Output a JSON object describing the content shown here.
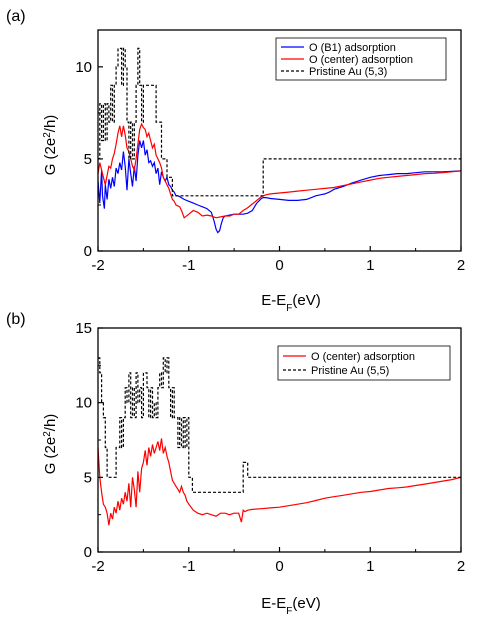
{
  "chart_data": [
    {
      "panel": "(a)",
      "type": "line",
      "xlabel": "E-E",
      "xlabel_sub": "F",
      "xlabel_unit": "(eV)",
      "ylabel": "G (2e",
      "ylabel_sup": "2",
      "ylabel_unit": "/h)",
      "xlim": [
        -2,
        2
      ],
      "ylim": [
        0,
        12
      ],
      "xticks": [
        -2,
        -1,
        0,
        1,
        2
      ],
      "yticks": [
        0,
        5,
        10
      ],
      "xtick_labels": [
        "-2",
        "-1",
        "0",
        "1",
        "2"
      ],
      "ytick_labels": [
        "0",
        "5",
        "10"
      ],
      "legend_position": "top-right",
      "series": [
        {
          "name": "O (B1) adsorption",
          "color": "#0000ff",
          "style": "solid",
          "x": [
            -2.0,
            -1.98,
            -1.96,
            -1.95,
            -1.93,
            -1.92,
            -1.9,
            -1.88,
            -1.86,
            -1.84,
            -1.82,
            -1.8,
            -1.78,
            -1.76,
            -1.74,
            -1.72,
            -1.7,
            -1.68,
            -1.66,
            -1.64,
            -1.62,
            -1.6,
            -1.58,
            -1.56,
            -1.54,
            -1.52,
            -1.5,
            -1.48,
            -1.46,
            -1.44,
            -1.42,
            -1.4,
            -1.38,
            -1.36,
            -1.34,
            -1.32,
            -1.3,
            -1.28,
            -1.26,
            -1.24,
            -1.22,
            -1.2,
            -1.18,
            -1.16,
            -1.14,
            -1.12,
            -1.1,
            -1.05,
            -1.0,
            -0.95,
            -0.9,
            -0.85,
            -0.8,
            -0.75,
            -0.72,
            -0.7,
            -0.68,
            -0.66,
            -0.64,
            -0.62,
            -0.6,
            -0.55,
            -0.5,
            -0.45,
            -0.4,
            -0.35,
            -0.3,
            -0.25,
            -0.22,
            -0.2,
            -0.18,
            -0.15,
            -0.1,
            0.0,
            0.1,
            0.2,
            0.3,
            0.4,
            0.45,
            0.5,
            0.55,
            0.6,
            0.7,
            0.8,
            0.9,
            1.0,
            1.1,
            1.2,
            1.3,
            1.4,
            1.5,
            1.6,
            1.65,
            1.7,
            1.8,
            1.9,
            2.0
          ],
          "y": [
            3.8,
            2.6,
            4.4,
            3.0,
            2.3,
            3.6,
            2.8,
            3.9,
            3.4,
            4.0,
            3.5,
            4.5,
            4.2,
            4.8,
            4.4,
            5.4,
            4.6,
            3.3,
            5.0,
            4.2,
            3.5,
            4.6,
            3.8,
            5.2,
            6.0,
            5.6,
            6.0,
            5.2,
            5.5,
            4.8,
            4.9,
            4.6,
            4.8,
            4.2,
            4.5,
            3.6,
            4.3,
            4.0,
            3.8,
            4.0,
            3.6,
            3.5,
            3.3,
            3.2,
            3.0,
            3.0,
            2.95,
            2.8,
            2.7,
            2.6,
            2.5,
            2.4,
            2.3,
            2.1,
            1.6,
            1.2,
            1.0,
            1.1,
            1.5,
            1.8,
            1.9,
            1.95,
            2.0,
            2.0,
            2.0,
            2.05,
            2.2,
            2.6,
            2.75,
            2.85,
            2.9,
            2.9,
            2.85,
            2.8,
            2.75,
            2.75,
            2.8,
            3.0,
            3.05,
            3.1,
            3.2,
            3.35,
            3.5,
            3.7,
            3.85,
            4.0,
            4.1,
            4.15,
            4.2,
            4.2,
            4.25,
            4.3,
            4.3,
            4.3,
            4.3,
            4.32,
            4.35
          ]
        },
        {
          "name": "O (center) adsorption",
          "color": "#ff0000",
          "style": "solid",
          "x": [
            -2.0,
            -1.98,
            -1.96,
            -1.94,
            -1.92,
            -1.9,
            -1.88,
            -1.86,
            -1.84,
            -1.82,
            -1.8,
            -1.78,
            -1.76,
            -1.74,
            -1.72,
            -1.7,
            -1.68,
            -1.66,
            -1.64,
            -1.62,
            -1.6,
            -1.58,
            -1.56,
            -1.54,
            -1.52,
            -1.5,
            -1.48,
            -1.46,
            -1.44,
            -1.42,
            -1.4,
            -1.38,
            -1.36,
            -1.34,
            -1.32,
            -1.3,
            -1.28,
            -1.26,
            -1.24,
            -1.22,
            -1.2,
            -1.18,
            -1.16,
            -1.14,
            -1.12,
            -1.1,
            -1.08,
            -1.05,
            -1.0,
            -0.95,
            -0.9,
            -0.85,
            -0.8,
            -0.75,
            -0.7,
            -0.65,
            -0.6,
            -0.55,
            -0.5,
            -0.45,
            -0.4,
            -0.35,
            -0.3,
            -0.25,
            -0.2,
            -0.15,
            -0.1,
            0.0,
            0.1,
            0.2,
            0.3,
            0.4,
            0.5,
            0.6,
            0.7,
            0.8,
            0.9,
            1.0,
            1.1,
            1.2,
            1.3,
            1.4,
            1.5,
            1.6,
            1.7,
            1.8,
            1.9,
            2.0
          ],
          "y": [
            4.2,
            4.8,
            4.4,
            4.0,
            3.6,
            4.1,
            4.6,
            4.5,
            5.0,
            5.3,
            5.8,
            6.4,
            6.8,
            6.2,
            6.8,
            6.3,
            5.6,
            5.4,
            5.0,
            4.6,
            4.4,
            5.0,
            5.8,
            6.6,
            6.9,
            6.7,
            6.6,
            6.2,
            6.4,
            6.0,
            5.6,
            5.8,
            5.2,
            5.0,
            4.8,
            4.5,
            4.0,
            3.8,
            3.6,
            3.4,
            3.1,
            2.8,
            2.7,
            2.5,
            2.45,
            2.4,
            2.2,
            1.8,
            2.0,
            2.2,
            2.1,
            1.9,
            1.95,
            1.9,
            1.8,
            1.85,
            1.9,
            1.9,
            2.0,
            2.0,
            2.2,
            2.35,
            2.55,
            2.75,
            2.95,
            3.05,
            3.1,
            3.15,
            3.2,
            3.25,
            3.3,
            3.35,
            3.4,
            3.45,
            3.55,
            3.65,
            3.75,
            3.85,
            3.95,
            4.0,
            4.05,
            4.1,
            4.15,
            4.2,
            4.22,
            4.25,
            4.3,
            4.35
          ]
        },
        {
          "name": "Pristine Au (5,3)",
          "color": "#000000",
          "style": "dashed",
          "step": true,
          "x": [
            -2.0,
            -1.98,
            -1.96,
            -1.94,
            -1.92,
            -1.9,
            -1.88,
            -1.86,
            -1.84,
            -1.82,
            -1.8,
            -1.78,
            -1.76,
            -1.74,
            -1.72,
            -1.7,
            -1.68,
            -1.66,
            -1.64,
            -1.62,
            -1.6,
            -1.58,
            -1.56,
            -1.54,
            -1.52,
            -1.5,
            -1.48,
            -1.46,
            -1.44,
            -1.42,
            -1.4,
            -1.38,
            -1.36,
            -1.34,
            -1.32,
            -1.3,
            -1.28,
            -1.26,
            -1.24,
            -1.22,
            -1.2,
            -1.18,
            -1.16,
            -1.14,
            -1.12,
            -0.2,
            -0.18,
            2.0
          ],
          "y": [
            5.0,
            8.0,
            6.0,
            8.0,
            6.0,
            8.0,
            7.0,
            9.0,
            7.0,
            9.0,
            10.0,
            11.0,
            11.0,
            9.0,
            11.0,
            10.0,
            7.0,
            5.0,
            7.0,
            5.0,
            7.0,
            9.0,
            11.0,
            9.0,
            7.0,
            9.0,
            9.0,
            9.0,
            9.0,
            9.0,
            9.0,
            9.0,
            7.0,
            7.0,
            7.0,
            5.0,
            5.0,
            5.0,
            4.0,
            4.0,
            4.0,
            3.0,
            3.0,
            3.0,
            3.0,
            3.0,
            5.0,
            5.0
          ]
        }
      ]
    },
    {
      "panel": "(b)",
      "type": "line",
      "xlabel": "E-E",
      "xlabel_sub": "F",
      "xlabel_unit": "(eV)",
      "ylabel": "G (2e",
      "ylabel_sup": "2",
      "ylabel_unit": "/h)",
      "xlim": [
        -2,
        2
      ],
      "ylim": [
        0,
        15
      ],
      "xticks": [
        -2,
        -1,
        0,
        1,
        2
      ],
      "yticks": [
        0,
        5,
        10,
        15
      ],
      "xtick_labels": [
        "-2",
        "-1",
        "0",
        "1",
        "2"
      ],
      "ytick_labels": [
        "0",
        "5",
        "10",
        "15"
      ],
      "legend_position": "top-right",
      "series": [
        {
          "name": "O (center) adsorption",
          "color": "#ff0000",
          "style": "solid",
          "x": [
            -2.0,
            -1.98,
            -1.96,
            -1.94,
            -1.92,
            -1.9,
            -1.88,
            -1.86,
            -1.84,
            -1.82,
            -1.8,
            -1.78,
            -1.76,
            -1.74,
            -1.72,
            -1.7,
            -1.68,
            -1.66,
            -1.64,
            -1.62,
            -1.6,
            -1.58,
            -1.56,
            -1.54,
            -1.52,
            -1.5,
            -1.48,
            -1.46,
            -1.44,
            -1.42,
            -1.4,
            -1.38,
            -1.36,
            -1.34,
            -1.32,
            -1.3,
            -1.28,
            -1.26,
            -1.24,
            -1.22,
            -1.2,
            -1.18,
            -1.16,
            -1.14,
            -1.12,
            -1.1,
            -1.08,
            -1.06,
            -1.04,
            -1.02,
            -1.0,
            -0.95,
            -0.9,
            -0.85,
            -0.8,
            -0.75,
            -0.7,
            -0.65,
            -0.6,
            -0.55,
            -0.5,
            -0.45,
            -0.42,
            -0.4,
            -0.38,
            -0.35,
            -0.3,
            -0.2,
            -0.1,
            0.0,
            0.1,
            0.2,
            0.3,
            0.4,
            0.5,
            0.6,
            0.7,
            0.8,
            0.9,
            1.0,
            1.1,
            1.2,
            1.3,
            1.4,
            1.5,
            1.6,
            1.7,
            1.8,
            1.9,
            2.0
          ],
          "y": [
            7.0,
            5.0,
            4.0,
            3.2,
            3.0,
            2.6,
            1.8,
            2.6,
            2.2,
            3.0,
            2.6,
            3.4,
            2.8,
            3.6,
            3.2,
            4.0,
            3.4,
            4.6,
            3.0,
            5.0,
            4.2,
            3.0,
            5.4,
            4.0,
            5.6,
            6.0,
            6.8,
            5.8,
            7.0,
            6.4,
            7.2,
            6.6,
            7.0,
            7.4,
            6.8,
            7.6,
            6.6,
            7.0,
            6.4,
            6.0,
            5.4,
            4.8,
            4.6,
            4.4,
            4.2,
            4.0,
            4.4,
            4.0,
            3.8,
            3.4,
            3.2,
            2.8,
            2.6,
            2.5,
            2.6,
            2.5,
            2.4,
            2.6,
            2.6,
            2.5,
            2.6,
            2.6,
            2.0,
            2.8,
            2.7,
            2.8,
            2.85,
            2.9,
            2.95,
            3.0,
            3.1,
            3.2,
            3.3,
            3.45,
            3.6,
            3.7,
            3.8,
            3.9,
            4.0,
            4.05,
            4.15,
            4.25,
            4.3,
            4.35,
            4.45,
            4.55,
            4.65,
            4.75,
            4.85,
            5.0
          ]
        },
        {
          "name": "Pristine Au (5,5)",
          "color": "#000000",
          "style": "dashed",
          "step": true,
          "x": [
            -2.0,
            -1.98,
            -1.96,
            -1.94,
            -1.92,
            -1.9,
            -1.88,
            -1.86,
            -1.84,
            -1.82,
            -1.8,
            -1.78,
            -1.76,
            -1.74,
            -1.72,
            -1.7,
            -1.68,
            -1.66,
            -1.64,
            -1.62,
            -1.6,
            -1.58,
            -1.56,
            -1.54,
            -1.52,
            -1.5,
            -1.48,
            -1.46,
            -1.44,
            -1.42,
            -1.4,
            -1.38,
            -1.36,
            -1.34,
            -1.32,
            -1.3,
            -1.28,
            -1.26,
            -1.24,
            -1.22,
            -1.2,
            -1.18,
            -1.16,
            -1.14,
            -1.12,
            -1.1,
            -1.08,
            -1.06,
            -1.04,
            -1.02,
            -1.0,
            -0.98,
            -0.96,
            -0.94,
            -0.42,
            -0.4,
            -0.38,
            -0.35,
            -0.32,
            2.0
          ],
          "y": [
            13.0,
            12.0,
            10.0,
            9.0,
            7.0,
            5.0,
            5.0,
            5.0,
            5.0,
            5.0,
            7.0,
            7.0,
            9.0,
            7.0,
            9.0,
            11.0,
            10.0,
            12.0,
            9.0,
            11.0,
            9.0,
            12.0,
            10.0,
            11.0,
            9.0,
            12.0,
            12.0,
            11.0,
            9.0,
            11.0,
            9.0,
            10.0,
            9.0,
            11.0,
            12.0,
            11.0,
            13.0,
            12.0,
            13.0,
            11.0,
            9.0,
            11.0,
            9.0,
            9.0,
            7.0,
            9.0,
            7.0,
            9.0,
            7.0,
            9.0,
            5.0,
            5.0,
            4.0,
            4.0,
            4.0,
            6.0,
            6.0,
            5.0,
            5.0,
            5.0
          ]
        }
      ]
    }
  ]
}
